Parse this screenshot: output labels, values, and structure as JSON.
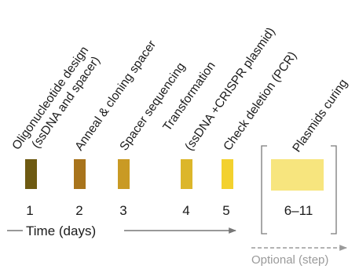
{
  "steps": [
    {
      "day": "1",
      "lines": [
        "Oligonucleotide design",
        "(ssDNA and spacer)"
      ],
      "color": "#6e5a12"
    },
    {
      "day": "2",
      "lines": [
        "Anneal & cloning spacer"
      ],
      "color": "#a8741c"
    },
    {
      "day": "3",
      "lines": [
        "Spacer sequencing"
      ],
      "color": "#c99a24"
    },
    {
      "day": "4",
      "lines": [
        "Transformation",
        "(ssDNA +CRISPR plasmid)"
      ],
      "color": "#dcb62a"
    },
    {
      "day": "5",
      "lines": [
        "Check deletion (PCR)"
      ],
      "color": "#f3d12e"
    },
    {
      "day": "6–11",
      "lines": [
        "Plasmids curing"
      ],
      "color": "#f7e57e"
    }
  ],
  "timeline": {
    "label": "Time (days)",
    "optional_label": "Optional (step)"
  }
}
